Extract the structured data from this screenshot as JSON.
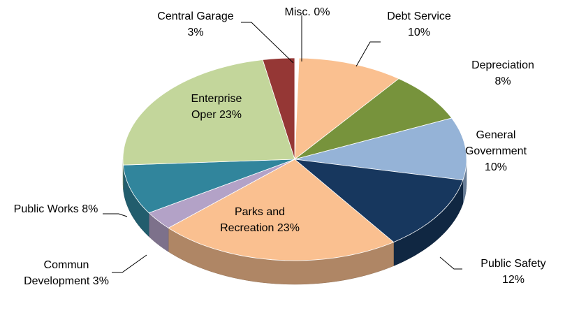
{
  "chart_data": {
    "type": "pie",
    "categories": [
      "Misc.",
      "Debt Service",
      "Depreciation",
      "General Government",
      "Public Safety",
      "Parks and Recreation",
      "Commun Development",
      "Public Works",
      "Enterprise Oper",
      "Central Garage"
    ],
    "values": [
      0.4,
      10,
      8,
      10,
      12,
      23,
      3,
      8,
      23,
      3
    ],
    "value_labels": [
      "0%",
      "10%",
      "8%",
      "10%",
      "12%",
      "23%",
      "3%",
      "8%",
      "23%",
      "3%"
    ],
    "colors": [
      "#ffffff",
      "#fac090",
      "#77933c",
      "#95b3d7",
      "#17375e",
      "#fac090",
      "#b3a2c7",
      "#31859c",
      "#c3d69b",
      "#953735"
    ]
  }
}
